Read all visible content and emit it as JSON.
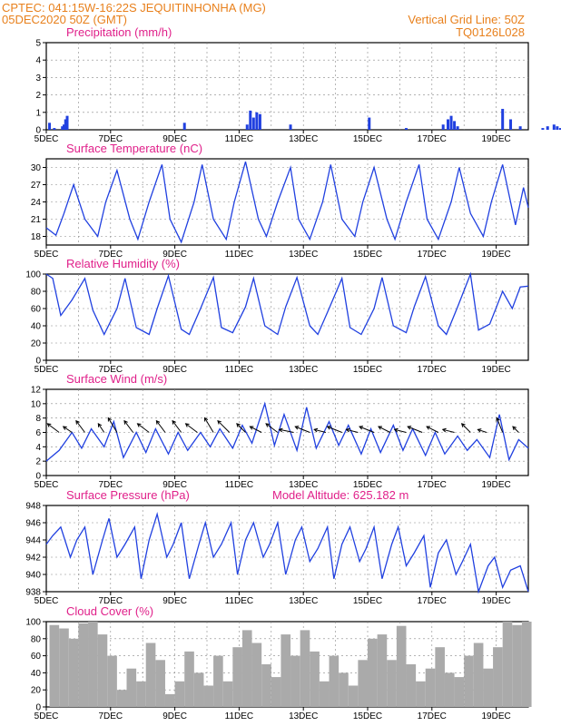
{
  "header": {
    "line1": "CPTEC:   041:15W-16:22S   JEQUITINHONHA  (MG)",
    "line2": "05DEC2020  50Z  (GMT)",
    "grid_note": "Vertical Grid Line: 50Z",
    "run_id": "TQ0126L028"
  },
  "colors": {
    "header": "#e8801c",
    "title": "#e0208a",
    "line": "#2040e0",
    "bar": "#2040e0",
    "cloud": "#aaaaaa"
  },
  "chart_data": [
    {
      "type": "bar",
      "title": "Precipitation  (mm/h)",
      "ylim": [
        0,
        5
      ],
      "yticks": [
        0,
        1,
        2,
        3,
        4,
        5
      ],
      "x_tick_labels": [
        "5DEC",
        "7DEC",
        "9DEC",
        "11DEC",
        "13DEC",
        "15DEC",
        "17DEC",
        "19DEC"
      ],
      "x_range_days": [
        0,
        15
      ],
      "series": [
        {
          "x": [
            0.1,
            0.25,
            0.5,
            0.55,
            0.6,
            0.65,
            4.3,
            6.25,
            6.35,
            6.45,
            6.55,
            6.65,
            7.6,
            10.05,
            11.2,
            12.35,
            12.5,
            12.6,
            12.7,
            12.8,
            14.2,
            14.45,
            14.75,
            15.45,
            15.6,
            15.8,
            15.9,
            16.0,
            16.1,
            16.2
          ],
          "values": [
            0.4,
            0.1,
            0.2,
            0.3,
            0.6,
            0.8,
            0.4,
            0.3,
            1.1,
            0.7,
            1.0,
            0.9,
            0.3,
            0.7,
            0.1,
            0.3,
            0.6,
            0.8,
            0.5,
            0.2,
            1.2,
            0.6,
            0.2,
            0.1,
            0.2,
            0.3,
            0.2,
            0.1,
            0.1,
            0.1
          ]
        }
      ]
    },
    {
      "type": "line",
      "title": "Surface Temperature (nC)",
      "ylim": [
        16.5,
        31.5
      ],
      "yticks": [
        18,
        21,
        24,
        27,
        30
      ],
      "x_tick_labels": [
        "5DEC",
        "7DEC",
        "9DEC",
        "11DEC",
        "13DEC",
        "15DEC",
        "17DEC",
        "19DEC"
      ],
      "series": [
        {
          "x": [
            0,
            0.3,
            0.55,
            0.85,
            1.2,
            1.6,
            1.85,
            2.2,
            2.6,
            2.85,
            3.2,
            3.6,
            3.85,
            4.2,
            4.6,
            4.85,
            5.2,
            5.6,
            5.85,
            6.2,
            6.6,
            6.85,
            7.2,
            7.6,
            7.85,
            8.2,
            8.6,
            8.85,
            9.2,
            9.6,
            9.85,
            10.2,
            10.6,
            10.85,
            11.2,
            11.6,
            11.85,
            12.2,
            12.6,
            12.85,
            13.2,
            13.6,
            13.85,
            14.2,
            14.6,
            14.85,
            15.0
          ],
          "values": [
            19.5,
            18.2,
            22,
            27,
            21,
            18,
            24,
            29.5,
            21,
            17.5,
            24,
            30.5,
            21,
            17,
            24,
            30.5,
            21,
            17.5,
            24,
            31,
            21,
            18,
            24,
            30,
            21,
            17.5,
            24,
            30.5,
            21,
            18,
            24,
            30,
            21,
            17.5,
            24,
            30.5,
            21,
            17.5,
            24,
            30,
            22,
            18,
            24,
            30.5,
            20,
            26.5,
            23
          ]
        }
      ]
    },
    {
      "type": "line",
      "title": "Relative Humidity  (%)",
      "ylim": [
        0,
        100
      ],
      "yticks": [
        0,
        20,
        40,
        60,
        80,
        100
      ],
      "x_tick_labels": [
        "5DEC",
        "7DEC",
        "9DEC",
        "11DEC",
        "13DEC",
        "15DEC",
        "17DEC",
        "19DEC"
      ],
      "series": [
        {
          "x": [
            0,
            0.2,
            0.45,
            0.8,
            1.2,
            1.45,
            1.8,
            2.2,
            2.45,
            2.8,
            3.2,
            3.45,
            3.8,
            4.2,
            4.45,
            4.8,
            5.2,
            5.45,
            5.8,
            6.2,
            6.45,
            6.8,
            7.2,
            7.45,
            7.8,
            8.2,
            8.45,
            8.8,
            9.2,
            9.45,
            9.8,
            10.2,
            10.45,
            10.8,
            11.2,
            11.45,
            11.8,
            12.2,
            12.45,
            12.8,
            13.2,
            13.45,
            13.8,
            14.2,
            14.5,
            14.75,
            15.0
          ],
          "values": [
            100,
            95,
            52,
            70,
            95,
            58,
            30,
            60,
            95,
            38,
            30,
            60,
            98,
            36,
            30,
            60,
            96,
            38,
            32,
            62,
            95,
            40,
            30,
            62,
            96,
            40,
            30,
            60,
            95,
            38,
            30,
            60,
            96,
            40,
            32,
            62,
            97,
            40,
            30,
            62,
            100,
            35,
            42,
            80,
            60,
            85,
            86
          ]
        }
      ]
    },
    {
      "type": "line",
      "title": "Surface Wind  (m/s)",
      "ylim": [
        0,
        12
      ],
      "yticks": [
        0,
        2,
        4,
        6,
        8,
        10,
        12
      ],
      "x_tick_labels": [
        "5DEC",
        "7DEC",
        "9DEC",
        "11DEC",
        "13DEC",
        "15DEC",
        "17DEC",
        "19DEC"
      ],
      "series": [
        {
          "x": [
            0,
            0.4,
            0.8,
            1.1,
            1.4,
            1.8,
            2.1,
            2.4,
            2.8,
            3.1,
            3.4,
            3.8,
            4.1,
            4.4,
            4.8,
            5.1,
            5.4,
            5.8,
            6.1,
            6.4,
            6.8,
            7.1,
            7.4,
            7.8,
            8.1,
            8.4,
            8.8,
            9.1,
            9.4,
            9.8,
            10.1,
            10.4,
            10.8,
            11.1,
            11.4,
            11.8,
            12.1,
            12.4,
            12.8,
            13.1,
            13.4,
            13.8,
            14.1,
            14.4,
            14.7,
            15.0
          ],
          "values": [
            2.0,
            3.5,
            6.0,
            3.8,
            6.5,
            4.0,
            7.5,
            2.5,
            6.0,
            3.2,
            6.5,
            3.0,
            6.0,
            3.5,
            6.0,
            4.0,
            6.5,
            3.8,
            7.0,
            4.5,
            10.0,
            4.2,
            8.5,
            3.5,
            9.5,
            3.8,
            7.5,
            4.2,
            7.0,
            3.0,
            6.5,
            3.2,
            7.0,
            3.5,
            6.5,
            2.8,
            6.0,
            3.0,
            5.5,
            3.5,
            5.0,
            2.5,
            8.5,
            2.2,
            5.0,
            3.8
          ]
        }
      ],
      "wind_vectors": {
        "x": [
          0.4,
          0.8,
          1.2,
          1.8,
          2.2,
          2.7,
          3.2,
          3.7,
          4.2,
          4.7,
          5.2,
          5.7,
          6.2,
          6.7,
          7.2,
          7.7,
          8.2,
          8.7,
          9.2,
          9.7,
          10.2,
          10.7,
          11.2,
          11.7,
          12.2,
          12.7,
          13.2,
          13.7,
          14.2,
          14.7
        ],
        "u": [
          -4,
          -3,
          -3,
          -2,
          -3,
          -3,
          -4,
          -3,
          -3,
          -4,
          -3,
          -4,
          -3,
          -4,
          -4,
          -5,
          -5,
          -4,
          -5,
          -4,
          -5,
          -4,
          -4,
          -5,
          -4,
          -4,
          -3,
          -3,
          -2,
          -2
        ],
        "v": [
          -3,
          -2,
          -4,
          -3,
          -5,
          -4,
          -3,
          -4,
          -4,
          -3,
          -5,
          -4,
          -3,
          -2,
          -3,
          -1,
          -2,
          -1,
          -2,
          -1,
          -2,
          -2,
          -1,
          -2,
          -2,
          -1,
          -3,
          -1,
          -5,
          -2
        ]
      }
    },
    {
      "type": "line",
      "title": "Surface Pressure (hPa)",
      "annotation": "Model Altitude: 625.182  m",
      "ylim": [
        938,
        948
      ],
      "yticks": [
        938,
        940,
        942,
        944,
        946,
        948
      ],
      "x_tick_labels": [
        "5DEC",
        "7DEC",
        "9DEC",
        "11DEC",
        "13DEC",
        "15DEC",
        "17DEC",
        "19DEC"
      ],
      "series": [
        {
          "x": [
            0,
            0.2,
            0.45,
            0.75,
            0.95,
            1.2,
            1.45,
            1.75,
            1.95,
            2.2,
            2.45,
            2.75,
            2.95,
            3.2,
            3.45,
            3.75,
            3.95,
            4.2,
            4.45,
            4.75,
            4.95,
            5.2,
            5.45,
            5.75,
            5.95,
            6.2,
            6.45,
            6.75,
            6.95,
            7.2,
            7.45,
            7.75,
            7.95,
            8.2,
            8.45,
            8.75,
            8.95,
            9.2,
            9.45,
            9.75,
            9.95,
            10.2,
            10.45,
            10.75,
            10.95,
            11.2,
            11.45,
            11.75,
            11.95,
            12.2,
            12.45,
            12.75,
            12.95,
            13.2,
            13.45,
            13.75,
            13.95,
            14.2,
            14.45,
            14.75,
            15.0
          ],
          "values": [
            943.5,
            944.5,
            945.5,
            942,
            944,
            945.5,
            940,
            944,
            946.5,
            942,
            943.5,
            945.5,
            939.5,
            944,
            947,
            942,
            943.5,
            946,
            939.5,
            943.5,
            946,
            942,
            943.5,
            946,
            940,
            944,
            946,
            942,
            943.5,
            946,
            940,
            944,
            945.5,
            941.5,
            943,
            945.5,
            939.5,
            943.5,
            945.5,
            941.5,
            943,
            945.5,
            939.5,
            943.5,
            945.5,
            941,
            942.5,
            944.5,
            938.5,
            942.5,
            944,
            940,
            941.5,
            943.5,
            938,
            941,
            942,
            938.5,
            940.5,
            941,
            938
          ]
        }
      ]
    },
    {
      "type": "bar",
      "title": "Cloud Cover  (%)",
      "ylim": [
        0,
        100
      ],
      "yticks": [
        0,
        20,
        40,
        60,
        80,
        100
      ],
      "x_tick_labels": [
        "5DEC",
        "7DEC",
        "9DEC",
        "11DEC",
        "13DEC",
        "15DEC",
        "17DEC",
        "19DEC"
      ],
      "series": [
        {
          "x": [
            0.1,
            0.4,
            0.7,
            1.0,
            1.3,
            1.6,
            1.9,
            2.2,
            2.5,
            2.8,
            3.1,
            3.4,
            3.7,
            4.0,
            4.3,
            4.6,
            4.9,
            5.2,
            5.5,
            5.8,
            6.1,
            6.4,
            6.7,
            7.0,
            7.3,
            7.6,
            7.9,
            8.2,
            8.5,
            8.8,
            9.1,
            9.4,
            9.7,
            10.0,
            10.3,
            10.6,
            10.9,
            11.2,
            11.5,
            11.8,
            12.1,
            12.4,
            12.7,
            13.0,
            13.3,
            13.6,
            13.9,
            14.2,
            14.5,
            14.8
          ],
          "values": [
            96,
            92,
            80,
            98,
            100,
            85,
            60,
            20,
            45,
            30,
            75,
            55,
            15,
            30,
            65,
            40,
            25,
            60,
            30,
            70,
            90,
            75,
            50,
            35,
            85,
            60,
            90,
            65,
            30,
            60,
            40,
            25,
            55,
            80,
            85,
            55,
            95,
            50,
            30,
            45,
            70,
            40,
            35,
            60,
            75,
            45,
            70,
            100,
            96,
            100
          ]
        }
      ]
    }
  ]
}
